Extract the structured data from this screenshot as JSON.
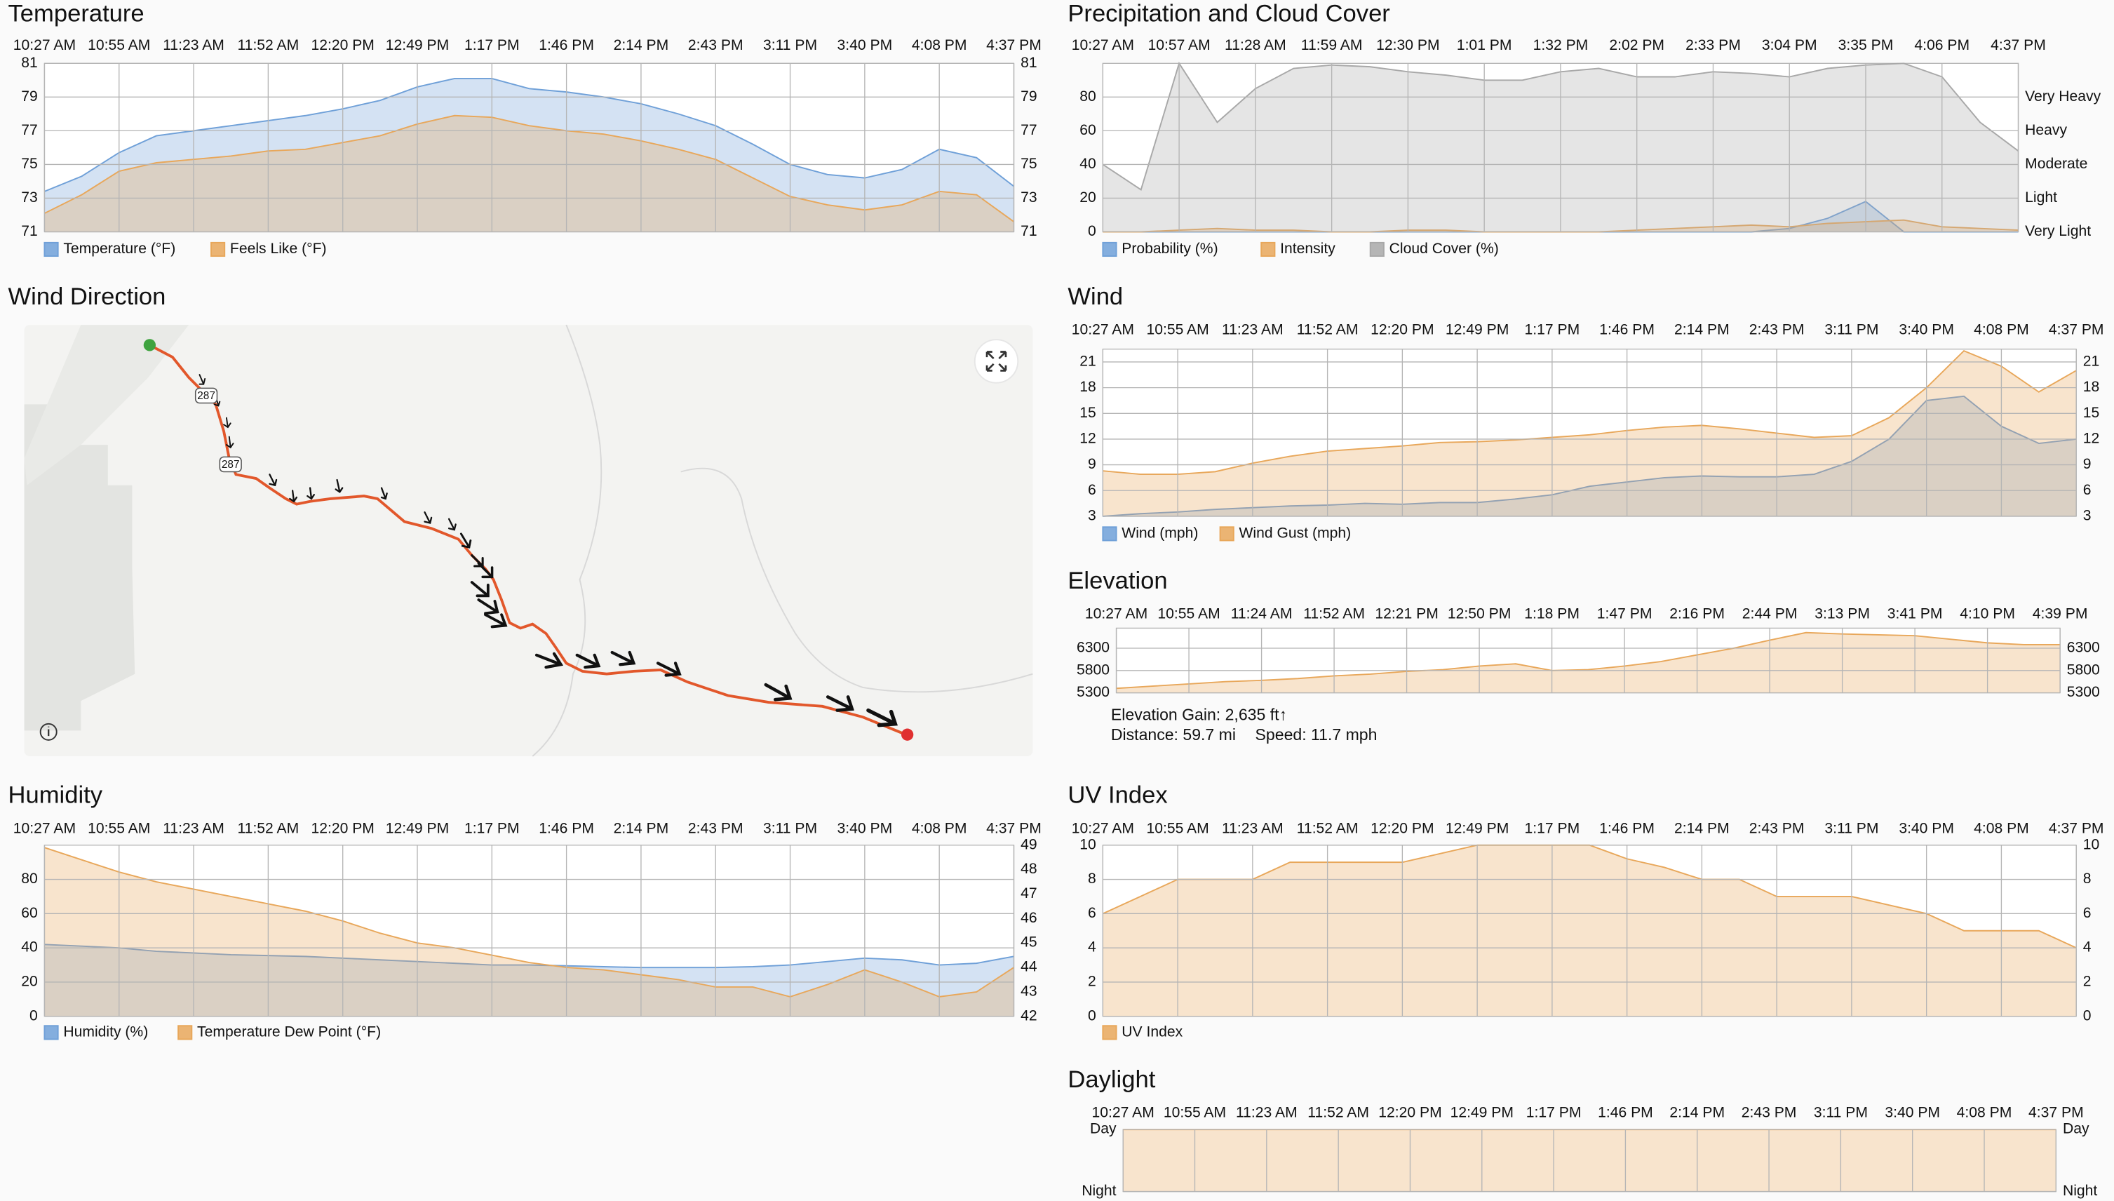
{
  "chart_data": [
    {
      "type": "area",
      "title": "Temperature",
      "categories": [
        "10:27 AM",
        null,
        "10:55 AM",
        null,
        "11:23 AM",
        null,
        "11:52 AM",
        null,
        "12:20 PM",
        null,
        "12:49 PM",
        null,
        "1:17 PM",
        null,
        "1:46 PM",
        null,
        "2:14 PM",
        null,
        "2:43 PM",
        null,
        "3:11 PM",
        null,
        "3:40 PM",
        null,
        "4:08 PM",
        null,
        "4:37 PM"
      ],
      "series": [
        {
          "name": "Temperature (°F)",
          "color": "#6fa0d8",
          "values": [
            73.4,
            74.3,
            75.7,
            76.7,
            77.0,
            77.3,
            77.6,
            77.9,
            78.3,
            78.8,
            79.6,
            80.1,
            80.1,
            79.5,
            79.3,
            79.0,
            78.6,
            78.0,
            77.3,
            76.2,
            75.0,
            74.4,
            74.2,
            74.7,
            75.9,
            75.4,
            73.7
          ]
        },
        {
          "name": "Feels Like (°F)",
          "color": "#e8a75a",
          "values": [
            72.1,
            73.2,
            74.6,
            75.1,
            75.3,
            75.5,
            75.8,
            75.9,
            76.3,
            76.7,
            77.4,
            77.9,
            77.8,
            77.3,
            77.0,
            76.8,
            76.4,
            75.9,
            75.3,
            74.2,
            73.1,
            72.6,
            72.3,
            72.6,
            73.4,
            73.2,
            71.6
          ]
        }
      ],
      "ylim": [
        71,
        81
      ],
      "yticks": [
        71,
        73,
        75,
        77,
        79,
        81
      ],
      "y2lim": [
        71,
        81
      ],
      "y2ticks": [
        71,
        73,
        75,
        77,
        79,
        81
      ],
      "grid": true
    },
    {
      "type": "area",
      "title": "Precipitation and Cloud Cover",
      "categories": [
        "10:27 AM",
        null,
        "10:57 AM",
        null,
        "11:28 AM",
        null,
        "11:59 AM",
        null,
        "12:30 PM",
        null,
        "1:01 PM",
        null,
        "1:32 PM",
        null,
        "2:02 PM",
        null,
        "2:33 PM",
        null,
        "3:04 PM",
        null,
        "3:35 PM",
        null,
        "4:06 PM",
        null,
        "4:37 PM"
      ],
      "series": [
        {
          "name": "Probability (%)",
          "color": "#6fa0d8",
          "values": [
            0,
            0,
            0,
            0,
            0,
            0,
            0,
            0,
            0,
            0,
            0,
            0,
            0,
            0,
            0,
            0,
            0,
            0,
            2,
            8,
            18,
            0,
            0,
            0,
            0
          ]
        },
        {
          "name": "Intensity",
          "color": "#e8a75a",
          "values": [
            0,
            0,
            1,
            2,
            1,
            1,
            0,
            0,
            1,
            1,
            0,
            0,
            0,
            0,
            1,
            2,
            3,
            4,
            3,
            5,
            6,
            7,
            3,
            2,
            1
          ]
        },
        {
          "name": "Cloud Cover (%)",
          "color": "#a8a8a8",
          "values": [
            40,
            25,
            100,
            65,
            85,
            97,
            99,
            98,
            95,
            93,
            90,
            90,
            95,
            97,
            92,
            92,
            95,
            94,
            92,
            97,
            99,
            100,
            92,
            65,
            48
          ]
        }
      ],
      "ylim": [
        0,
        100
      ],
      "yticks": [
        0,
        20,
        40,
        60,
        80
      ],
      "y2lim": [
        0,
        100
      ],
      "y2ticks": [
        {
          "value": 0,
          "label": "Very Light"
        },
        {
          "value": 20,
          "label": "Light"
        },
        {
          "value": 40,
          "label": "Moderate"
        },
        {
          "value": 60,
          "label": "Heavy"
        },
        {
          "value": 80,
          "label": "Very Heavy"
        }
      ],
      "grid": true
    },
    {
      "type": "area",
      "title": "Wind",
      "categories": [
        "10:27 AM",
        null,
        "10:55 AM",
        null,
        "11:23 AM",
        null,
        "11:52 AM",
        null,
        "12:20 PM",
        null,
        "12:49 PM",
        null,
        "1:17 PM",
        null,
        "1:46 PM",
        null,
        "2:14 PM",
        null,
        "2:43 PM",
        null,
        "3:11 PM",
        null,
        "3:40 PM",
        null,
        "4:08 PM",
        null,
        "4:37 PM"
      ],
      "series": [
        {
          "name": "Wind (mph)",
          "color": "#6fa0d8",
          "values": [
            3.0,
            3.3,
            3.5,
            3.8,
            4.0,
            4.2,
            4.3,
            4.5,
            4.4,
            4.6,
            4.6,
            5.0,
            5.5,
            6.5,
            7.0,
            7.5,
            7.7,
            7.6,
            7.6,
            7.9,
            9.4,
            12.0,
            16.5,
            17.0,
            13.5,
            11.5,
            12.0
          ]
        },
        {
          "name": "Wind Gust (mph)",
          "color": "#e8a75a",
          "values": [
            8.3,
            7.9,
            7.9,
            8.2,
            9.2,
            10.0,
            10.6,
            10.9,
            11.2,
            11.6,
            11.7,
            11.9,
            12.2,
            12.5,
            13.0,
            13.4,
            13.6,
            13.2,
            12.7,
            12.2,
            12.4,
            14.5,
            18.0,
            22.3,
            20.5,
            17.5,
            20.0
          ]
        }
      ],
      "ylim": [
        3,
        22.5
      ],
      "yticks": [
        3,
        6,
        9,
        12,
        15,
        18,
        21
      ],
      "y2lim": [
        3,
        22.5
      ],
      "y2ticks": [
        3,
        6,
        9,
        12,
        15,
        18,
        21
      ],
      "grid": true
    },
    {
      "type": "area",
      "title": "Elevation",
      "categories": [
        "10:27 AM",
        null,
        "10:55 AM",
        null,
        "11:24 AM",
        null,
        "11:52 AM",
        null,
        "12:21 PM",
        null,
        "12:50 PM",
        null,
        "1:18 PM",
        null,
        "1:47 PM",
        null,
        "2:16 PM",
        null,
        "2:44 PM",
        null,
        "3:13 PM",
        null,
        "3:41 PM",
        null,
        "4:10 PM",
        null,
        "4:39 PM"
      ],
      "series": [
        {
          "color": "#e8a75a",
          "values": [
            5400,
            5450,
            5500,
            5550,
            5580,
            5620,
            5680,
            5720,
            5780,
            5820,
            5900,
            5950,
            5800,
            5820,
            5900,
            6000,
            6150,
            6300,
            6480,
            6650,
            6620,
            6600,
            6580,
            6500,
            6420,
            6380,
            6380
          ]
        }
      ],
      "ylim": [
        5300,
        6750
      ],
      "yticks": [
        5300,
        5800,
        6300
      ],
      "y2lim": [
        5300,
        6750
      ],
      "y2ticks": [
        5300,
        5800,
        6300
      ],
      "grid": true
    },
    {
      "type": "area",
      "title": "Humidity",
      "categories": [
        "10:27 AM",
        null,
        "10:55 AM",
        null,
        "11:23 AM",
        null,
        "11:52 AM",
        null,
        "12:20 PM",
        null,
        "12:49 PM",
        null,
        "1:17 PM",
        null,
        "1:46 PM",
        null,
        "2:14 PM",
        null,
        "2:43 PM",
        null,
        "3:11 PM",
        null,
        "3:40 PM",
        null,
        "4:08 PM",
        null,
        "4:37 PM"
      ],
      "series": [
        {
          "name": "Humidity (%)",
          "color": "#6fa0d8",
          "values": [
            42,
            41,
            40,
            38,
            37,
            36,
            35.5,
            35,
            34,
            33,
            32,
            31,
            30,
            30,
            29.5,
            29,
            28.5,
            28.5,
            28.5,
            29,
            30,
            32,
            34,
            33,
            30,
            31,
            35
          ]
        },
        {
          "name": "Temperature Dew Point (°F)",
          "color": "#e8a75a",
          "axis": "y2",
          "values": [
            48.9,
            48.4,
            47.9,
            47.5,
            47.2,
            46.9,
            46.6,
            46.3,
            45.9,
            45.4,
            45.0,
            44.8,
            44.5,
            44.2,
            44.0,
            43.9,
            43.7,
            43.5,
            43.2,
            43.2,
            42.8,
            43.3,
            43.9,
            43.4,
            42.8,
            43.0,
            44.0
          ]
        }
      ],
      "ylim": [
        0,
        100
      ],
      "yticks": [
        0,
        20,
        40,
        60,
        80
      ],
      "y2lim": [
        42,
        49
      ],
      "y2ticks": [
        42,
        43,
        44,
        45,
        46,
        47,
        48,
        49
      ],
      "grid": true
    },
    {
      "type": "area",
      "title": "UV Index",
      "categories": [
        "10:27 AM",
        null,
        "10:55 AM",
        null,
        "11:23 AM",
        null,
        "11:52 AM",
        null,
        "12:20 PM",
        null,
        "12:49 PM",
        null,
        "1:17 PM",
        null,
        "1:46 PM",
        null,
        "2:14 PM",
        null,
        "2:43 PM",
        null,
        "3:11 PM",
        null,
        "3:40 PM",
        null,
        "4:08 PM",
        null,
        "4:37 PM"
      ],
      "series": [
        {
          "name": "UV Index",
          "color": "#e8a75a",
          "values": [
            6,
            7,
            8,
            8,
            8,
            9,
            9,
            9,
            9,
            9.5,
            10,
            10,
            10,
            10,
            9.2,
            8.7,
            8,
            8,
            7,
            7,
            7,
            6.5,
            6,
            5,
            5,
            5,
            4
          ]
        }
      ],
      "ylim": [
        0,
        10
      ],
      "yticks": [
        0,
        2,
        4,
        6,
        8,
        10
      ],
      "y2lim": [
        0,
        10
      ],
      "y2ticks": [
        0,
        2,
        4,
        6,
        8,
        10
      ],
      "grid": true
    },
    {
      "type": "area",
      "title": "Daylight",
      "categories": [
        "10:27 AM",
        "10:55 AM",
        "11:23 AM",
        "11:52 AM",
        "12:20 PM",
        "12:49 PM",
        "1:17 PM",
        "1:46 PM",
        "2:14 PM",
        "2:43 PM",
        "3:11 PM",
        "3:40 PM",
        "4:08 PM",
        "4:37 PM"
      ],
      "series": [
        {
          "color": "#e8a75a",
          "values": [
            1,
            1,
            1,
            1,
            1,
            1,
            1,
            1,
            1,
            1,
            1,
            1,
            1,
            1
          ]
        }
      ],
      "ylim": [
        0,
        1
      ],
      "yticks": [
        {
          "value": 0,
          "label": "Night"
        },
        {
          "value": 1,
          "label": "Day"
        }
      ],
      "y2lim": [
        0,
        1
      ],
      "y2ticks": [
        {
          "value": 0,
          "label": "Night"
        },
        {
          "value": 1,
          "label": "Day"
        }
      ],
      "grid": true
    }
  ],
  "map": {
    "title": "Wind Direction",
    "route_labels": [
      "287",
      "287"
    ]
  },
  "elevation_summary": {
    "gain": "Elevation Gain: 2,635 ft↑",
    "distance": "Distance: 59.7 mi",
    "speed": "Speed: 11.7 mph"
  }
}
